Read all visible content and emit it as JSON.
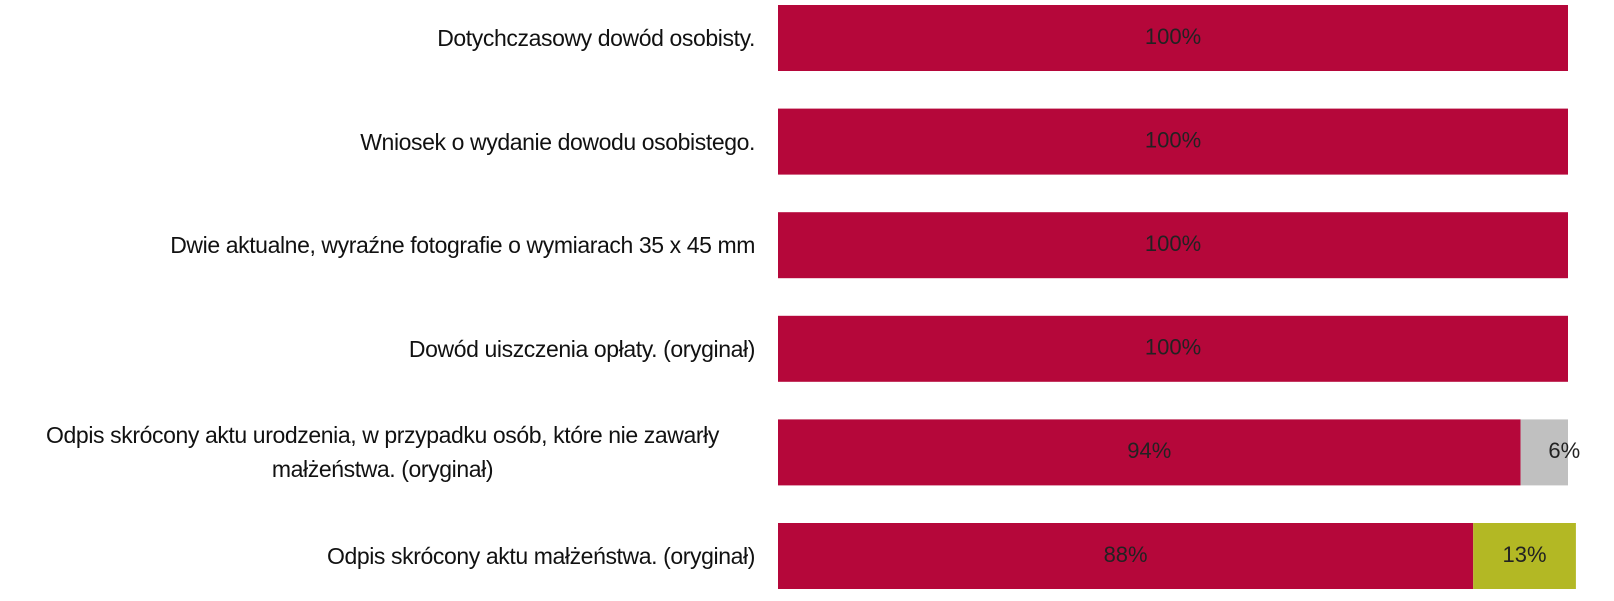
{
  "chart_data": {
    "type": "stacked-bar-horizontal",
    "categories": [
      "Dotychczasowy dowód osobisty.",
      "Wniosek o wydanie dowodu osobistego.",
      "Dwie aktualne, wyraźne fotografie o wymiarach 35 x 45 mm",
      "Dowód uiszczenia opłaty. (oryginał)",
      "Odpis skrócony aktu urodzenia, w przypadku osób, które nie zawarły małżeństwa. (oryginał)",
      "Odpis skrócony aktu małżeństwa. (oryginał)"
    ],
    "series": [
      {
        "color": "#b5073a",
        "values": [
          100,
          100,
          100,
          100,
          94,
          88
        ],
        "value_labels": [
          "100%",
          "100%",
          "100%",
          "100%",
          "94%",
          "88%"
        ]
      },
      {
        "color": "#c0c0c0",
        "values": [
          null,
          null,
          null,
          null,
          6,
          null
        ],
        "value_labels": [
          null,
          null,
          null,
          null,
          "6%",
          null
        ]
      },
      {
        "color": "#b3b824",
        "values": [
          null,
          null,
          null,
          null,
          null,
          13
        ],
        "value_labels": [
          null,
          null,
          null,
          null,
          null,
          "13%"
        ]
      }
    ],
    "xlim": [
      0,
      100
    ]
  }
}
